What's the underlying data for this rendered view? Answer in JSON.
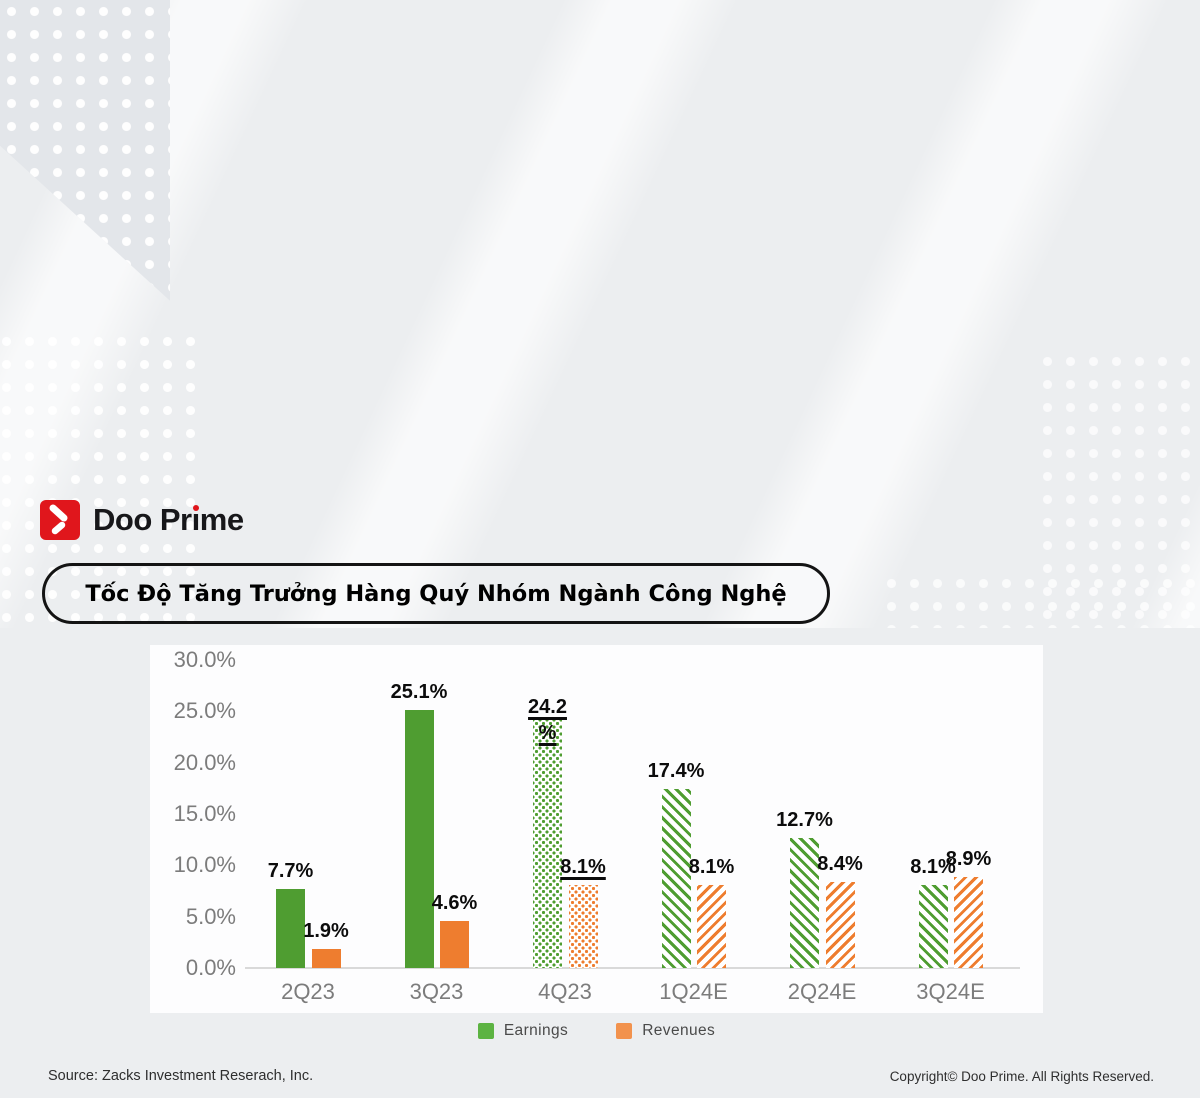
{
  "brand": {
    "name": "Doo Prime",
    "logo_pre": "Doo Pr",
    "logo_i": "ı",
    "logo_post": "me"
  },
  "title": "Tốc Độ Tăng Trưởng Hàng Quý Nhóm Ngành Công Nghệ",
  "footer": {
    "source": "Source: Zacks Investment Reserach, Inc.",
    "copyright": "Copyright© Doo Prime. All Rights Reserved."
  },
  "colors": {
    "earnings_green": "#4f9d31",
    "revenues_orange": "#ee7d2f",
    "brand_red": "#e0161c",
    "axis_label_gray": "#7c7c7c"
  },
  "chart_data": {
    "type": "bar",
    "categories": [
      "2Q23",
      "3Q23",
      "4Q23",
      "1Q24E",
      "2Q24E",
      "3Q24E"
    ],
    "series": [
      {
        "name": "Earnings",
        "values": [
          7.7,
          25.1,
          24.2,
          17.4,
          12.7,
          8.1
        ],
        "labels": [
          "7.7%",
          "25.1%",
          "24.2 %",
          "17.4%",
          "12.7%",
          "8.1%"
        ]
      },
      {
        "name": "Revenues",
        "values": [
          1.9,
          4.6,
          8.1,
          8.1,
          8.4,
          8.9
        ],
        "labels": [
          "1.9%",
          "4.6%",
          "8.1%",
          "8.1%",
          "8.4%",
          "8.9%"
        ]
      }
    ],
    "bar_styles": [
      "solid",
      "solid",
      "dots",
      "hatch",
      "hatch",
      "hatch"
    ],
    "underlined_category": "4Q23",
    "y_ticks": [
      "30.0%",
      "25.0%",
      "20.0%",
      "15.0%",
      "10.0%",
      "5.0%",
      "0.0%"
    ],
    "y_tick_values": [
      30,
      25,
      20,
      15,
      10,
      5,
      0
    ],
    "ylim": [
      0,
      30
    ],
    "legend": [
      "Earnings",
      "Revenues"
    ],
    "legend_position": "bottom",
    "grid": false
  }
}
